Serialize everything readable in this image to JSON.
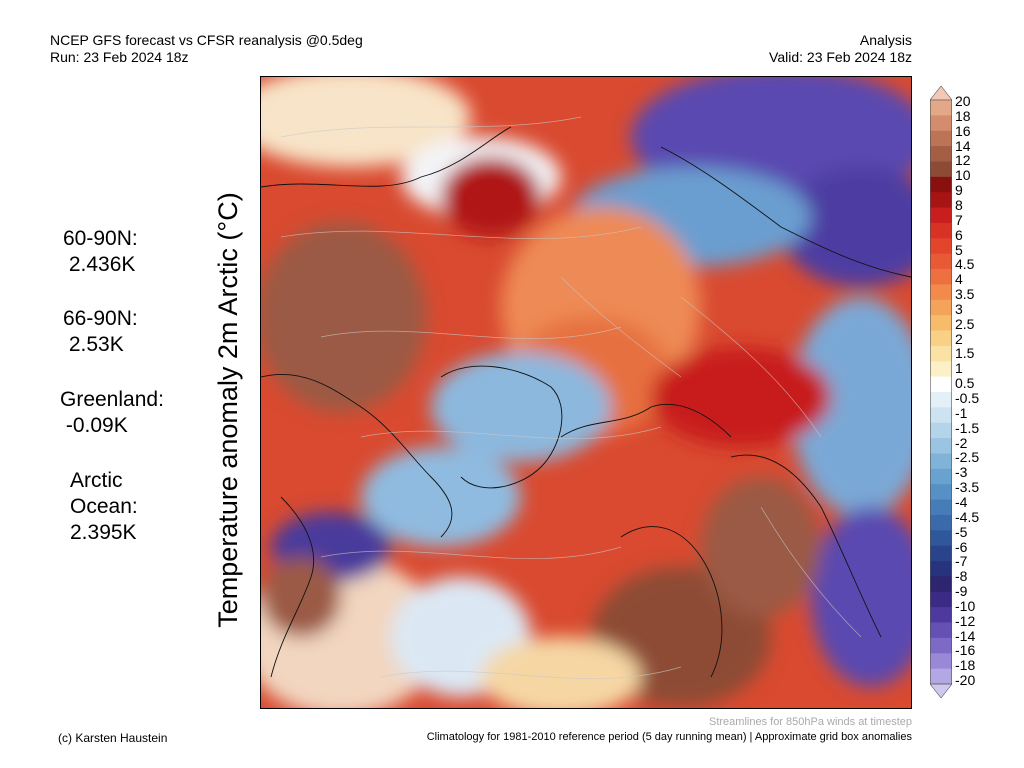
{
  "header": {
    "title_line1": "NCEP GFS forecast vs CFSR reanalysis @0.5deg",
    "title_line2": "Run: 23 Feb 2024 18z",
    "right_line1": "Analysis",
    "right_line2": "Valid: 23 Feb 2024 18z"
  },
  "y_axis_label": "Temperature anomaly 2m Arctic (°C)",
  "stats": [
    {
      "label": "60-90N:",
      "value": " 2.436K"
    },
    {
      "label": "66-90N:",
      "value": " 2.53K"
    },
    {
      "label": "Greenland:",
      "value": " -0.09K"
    },
    {
      "label": "Arctic\nOcean:",
      "value": "2.395K"
    }
  ],
  "colorbar": {
    "labels": [
      "20",
      "18",
      "16",
      "14",
      "12",
      "10",
      "9",
      "8",
      "7",
      "6",
      "5",
      "4.5",
      "4",
      "3.5",
      "3",
      "2.5",
      "2",
      "1.5",
      "1",
      "0.5",
      "-0.5",
      "-1",
      "-1.5",
      "-2",
      "-2.5",
      "-3",
      "-3.5",
      "-4",
      "-4.5",
      "-5",
      "-6",
      "-7",
      "-8",
      "-9",
      "-10",
      "-12",
      "-14",
      "-16",
      "-18",
      "-20"
    ],
    "colors": [
      "#f3c9b6",
      "#e3a888",
      "#d38d6c",
      "#bd7355",
      "#a45e44",
      "#8d4b35",
      "#8a1010",
      "#a81414",
      "#c81e1e",
      "#d93225",
      "#e2442c",
      "#e85a35",
      "#ee7040",
      "#f28a4c",
      "#f4a45a",
      "#f6bc6c",
      "#f8d186",
      "#fae2a4",
      "#fbf0c8",
      "#ffffff",
      "#e4f0f8",
      "#cde3f1",
      "#b4d4ea",
      "#9ac4e2",
      "#81b3d9",
      "#6aa2cf",
      "#5690c4",
      "#467cb8",
      "#3a6aab",
      "#30579c",
      "#2a448c",
      "#27337c",
      "#2e2470",
      "#3b2a86",
      "#4e3a9e",
      "#6550b4",
      "#7d6ac6",
      "#9888d6",
      "#b4a8e4",
      "#cfc8f0"
    ]
  },
  "footer": {
    "credit": "(c) Karsten Haustein",
    "streamline_note": "Streamlines for 850hPa winds at timestep",
    "climatology_note": "Climatology for 1981-2010 reference period (5 day running mean) | Approximate grid box anomalies"
  }
}
